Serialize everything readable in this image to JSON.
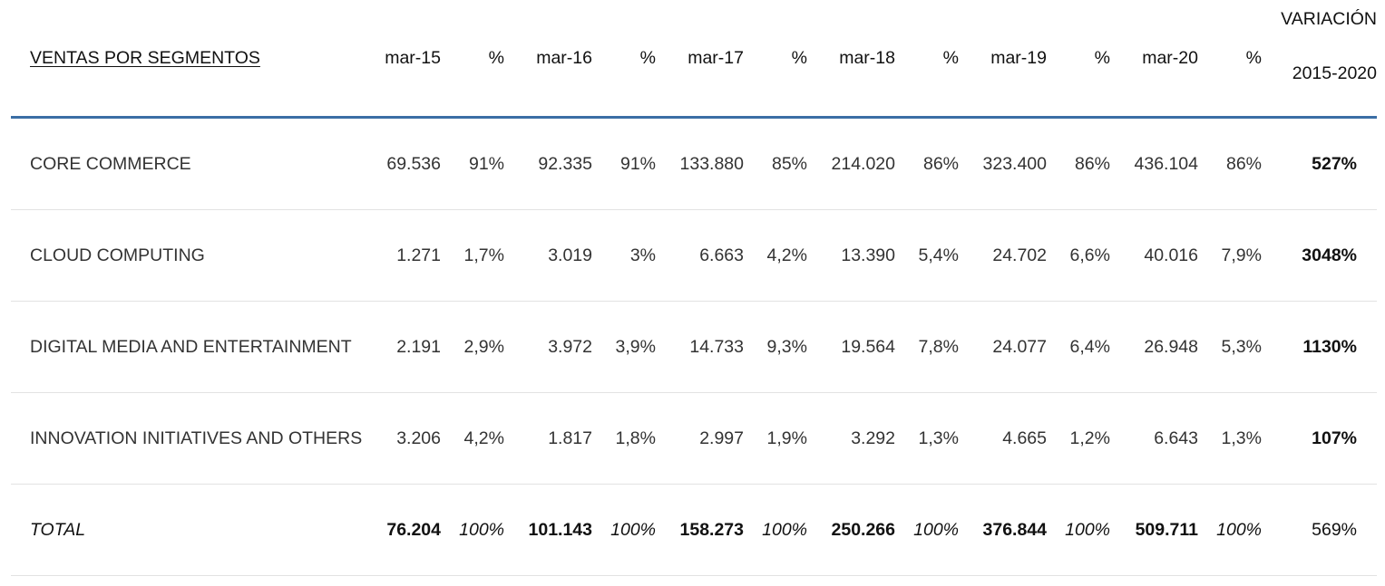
{
  "table": {
    "segment_header": "VENTAS POR SEGMENTOS",
    "columns": [
      "mar-15",
      "%",
      "mar-16",
      "%",
      "mar-17",
      "%",
      "mar-18",
      "%",
      "mar-19",
      "%",
      "mar-20",
      "%"
    ],
    "variation_header": {
      "line1": "VARIACIÓN",
      "line2": "2015-2020"
    },
    "rows": [
      {
        "segment": "CORE COMMERCE",
        "cells": [
          "69.536",
          "91%",
          "92.335",
          "91%",
          "133.880",
          "85%",
          "214.020",
          "86%",
          "323.400",
          "86%",
          "436.104",
          "86%"
        ],
        "variation": "527%"
      },
      {
        "segment": "CLOUD COMPUTING",
        "cells": [
          "1.271",
          "1,7%",
          "3.019",
          "3%",
          "6.663",
          "4,2%",
          "13.390",
          "5,4%",
          "24.702",
          "6,6%",
          "40.016",
          "7,9%"
        ],
        "variation": "3048%"
      },
      {
        "segment": "DIGITAL MEDIA AND ENTERTAINMENT",
        "cells": [
          "2.191",
          "2,9%",
          "3.972",
          "3,9%",
          "14.733",
          "9,3%",
          "19.564",
          "7,8%",
          "24.077",
          "6,4%",
          "26.948",
          "5,3%"
        ],
        "variation": "1130%"
      },
      {
        "segment": "INNOVATION INITIATIVES AND OTHERS",
        "cells": [
          "3.206",
          "4,2%",
          "1.817",
          "1,8%",
          "2.997",
          "1,9%",
          "3.292",
          "1,3%",
          "4.665",
          "1,2%",
          "6.643",
          "1,3%"
        ],
        "variation": "107%"
      },
      {
        "segment": "TOTAL",
        "cells": [
          "76.204",
          "100%",
          "101.143",
          "100%",
          "158.273",
          "100%",
          "250.266",
          "100%",
          "376.844",
          "100%",
          "509.711",
          "100%"
        ],
        "variation": "569%"
      }
    ]
  },
  "colors": {
    "header_rule": "#3a6ea5",
    "row_divider": "#e2e2e2",
    "text": "#333333"
  }
}
